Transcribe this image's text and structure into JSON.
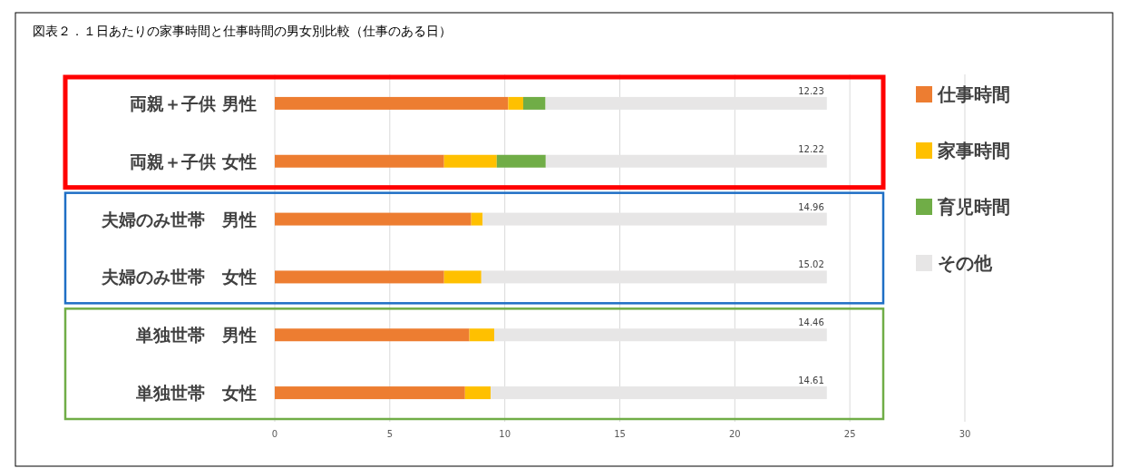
{
  "chart_data": {
    "type": "bar",
    "orientation": "horizontal",
    "stacked": true,
    "title": "図表２．１日あたりの家事時間と仕事時間の男女別比較（仕事のある日）",
    "categories": [
      "両親＋子供 男性",
      "両親＋子供 女性",
      "夫婦のみ世帯　男性",
      "夫婦のみ世帯　女性",
      "単独世帯　男性",
      "単独世帯　女性"
    ],
    "series": [
      {
        "name": "仕事時間",
        "color": "#ed7d31",
        "values": [
          10.15,
          7.36,
          8.54,
          7.36,
          8.46,
          8.27
        ]
      },
      {
        "name": "家事時間",
        "color": "#ffc000",
        "values": [
          0.65,
          2.29,
          0.5,
          1.62,
          1.08,
          1.12
        ]
      },
      {
        "name": "育児時間",
        "color": "#70ad47",
        "values": [
          0.97,
          2.13,
          null,
          null,
          null,
          null
        ]
      },
      {
        "name": "その他",
        "color": "#e7e6e6",
        "values": [
          12.23,
          12.22,
          14.96,
          15.02,
          14.46,
          14.61
        ],
        "value_labels": [
          "12.23",
          "12.22",
          "14.96",
          "15.02",
          "14.46",
          "14.61"
        ]
      }
    ],
    "xlim": [
      0,
      30
    ],
    "xticks": [
      0,
      5,
      10,
      15,
      20,
      25,
      30
    ],
    "grid": "x",
    "legend": "right"
  }
}
